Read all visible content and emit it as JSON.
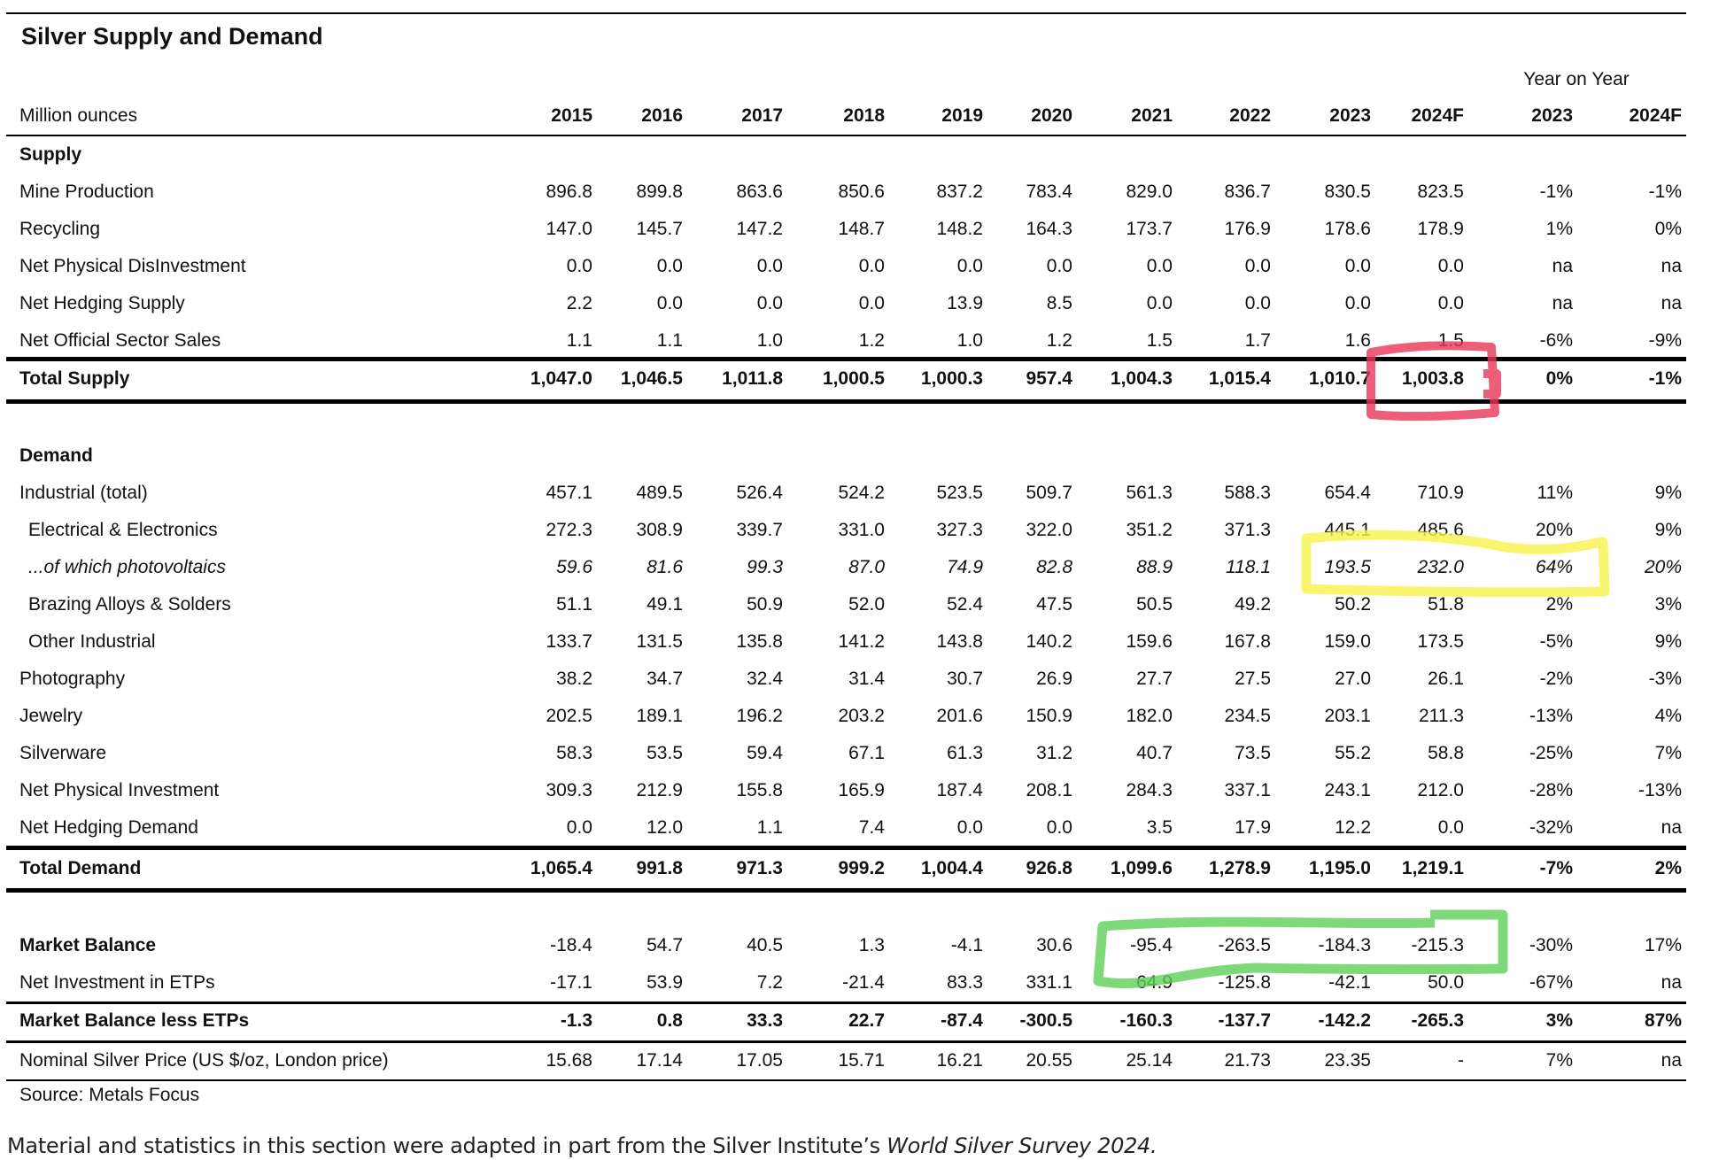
{
  "title": "Silver Supply and Demand",
  "yoy_label": "Year on Year",
  "header": {
    "label": "Million ounces",
    "years": [
      "2015",
      "2016",
      "2017",
      "2018",
      "2019",
      "2020",
      "2021",
      "2022",
      "2023",
      "2024F"
    ],
    "yoy": [
      "2023",
      "2024F"
    ]
  },
  "rows": [
    {
      "label": "Supply",
      "style": "section",
      "values": [],
      "yoy": []
    },
    {
      "label": "Mine Production",
      "values": [
        "896.8",
        "899.8",
        "863.6",
        "850.6",
        "837.2",
        "783.4",
        "829.0",
        "836.7",
        "830.5",
        "823.5"
      ],
      "yoy": [
        "-1%",
        "-1%"
      ]
    },
    {
      "label": "Recycling",
      "values": [
        "147.0",
        "145.7",
        "147.2",
        "148.7",
        "148.2",
        "164.3",
        "173.7",
        "176.9",
        "178.6",
        "178.9"
      ],
      "yoy": [
        "1%",
        "0%"
      ]
    },
    {
      "label": "Net Physical DisInvestment",
      "values": [
        "0.0",
        "0.0",
        "0.0",
        "0.0",
        "0.0",
        "0.0",
        "0.0",
        "0.0",
        "0.0",
        "0.0"
      ],
      "yoy": [
        "na",
        "na"
      ]
    },
    {
      "label": "Net Hedging Supply",
      "values": [
        "2.2",
        "0.0",
        "0.0",
        "0.0",
        "13.9",
        "8.5",
        "0.0",
        "0.0",
        "0.0",
        "0.0"
      ],
      "yoy": [
        "na",
        "na"
      ]
    },
    {
      "label": "Net Official Sector Sales",
      "values": [
        "1.1",
        "1.1",
        "1.0",
        "1.2",
        "1.0",
        "1.2",
        "1.5",
        "1.7",
        "1.6",
        "1.5"
      ],
      "yoy": [
        "-6%",
        "-9%"
      ]
    },
    {
      "label": "Total Supply",
      "style": "bold",
      "values": [
        "1,047.0",
        "1,046.5",
        "1,011.8",
        "1,000.5",
        "1,000.3",
        "957.4",
        "1,004.3",
        "1,015.4",
        "1,010.7",
        "1,003.8"
      ],
      "yoy": [
        "0%",
        "-1%"
      ]
    },
    {
      "label": "Demand",
      "style": "section",
      "values": [],
      "yoy": []
    },
    {
      "label": "Industrial (total)",
      "values": [
        "457.1",
        "489.5",
        "526.4",
        "524.2",
        "523.5",
        "509.7",
        "561.3",
        "588.3",
        "654.4",
        "710.9"
      ],
      "yoy": [
        "11%",
        "9%"
      ]
    },
    {
      "label": "Electrical & Electronics",
      "style": "indent",
      "values": [
        "272.3",
        "308.9",
        "339.7",
        "331.0",
        "327.3",
        "322.0",
        "351.2",
        "371.3",
        "445.1",
        "485.6"
      ],
      "yoy": [
        "20%",
        "9%"
      ]
    },
    {
      "label": "...of which photovoltaics",
      "style": "indent italic",
      "values": [
        "59.6",
        "81.6",
        "99.3",
        "87.0",
        "74.9",
        "82.8",
        "88.9",
        "118.1",
        "193.5",
        "232.0"
      ],
      "yoy": [
        "64%",
        "20%"
      ]
    },
    {
      "label": "Brazing Alloys & Solders",
      "style": "indent",
      "values": [
        "51.1",
        "49.1",
        "50.9",
        "52.0",
        "52.4",
        "47.5",
        "50.5",
        "49.2",
        "50.2",
        "51.8"
      ],
      "yoy": [
        "2%",
        "3%"
      ]
    },
    {
      "label": "Other Industrial",
      "style": "indent",
      "values": [
        "133.7",
        "131.5",
        "135.8",
        "141.2",
        "143.8",
        "140.2",
        "159.6",
        "167.8",
        "159.0",
        "173.5"
      ],
      "yoy": [
        "-5%",
        "9%"
      ]
    },
    {
      "label": "Photography",
      "values": [
        "38.2",
        "34.7",
        "32.4",
        "31.4",
        "30.7",
        "26.9",
        "27.7",
        "27.5",
        "27.0",
        "26.1"
      ],
      "yoy": [
        "-2%",
        "-3%"
      ]
    },
    {
      "label": "Jewelry",
      "values": [
        "202.5",
        "189.1",
        "196.2",
        "203.2",
        "201.6",
        "150.9",
        "182.0",
        "234.5",
        "203.1",
        "211.3"
      ],
      "yoy": [
        "-13%",
        "4%"
      ]
    },
    {
      "label": "Silverware",
      "values": [
        "58.3",
        "53.5",
        "59.4",
        "67.1",
        "61.3",
        "31.2",
        "40.7",
        "73.5",
        "55.2",
        "58.8"
      ],
      "yoy": [
        "-25%",
        "7%"
      ]
    },
    {
      "label": "Net Physical Investment",
      "values": [
        "309.3",
        "212.9",
        "155.8",
        "165.9",
        "187.4",
        "208.1",
        "284.3",
        "337.1",
        "243.1",
        "212.0"
      ],
      "yoy": [
        "-28%",
        "-13%"
      ]
    },
    {
      "label": "Net Hedging Demand",
      "values": [
        "0.0",
        "12.0",
        "1.1",
        "7.4",
        "0.0",
        "0.0",
        "3.5",
        "17.9",
        "12.2",
        "0.0"
      ],
      "yoy": [
        "-32%",
        "na"
      ]
    },
    {
      "label": "Total Demand",
      "style": "bold",
      "values": [
        "1,065.4",
        "991.8",
        "971.3",
        "999.2",
        "1,004.4",
        "926.8",
        "1,099.6",
        "1,278.9",
        "1,195.0",
        "1,219.1"
      ],
      "yoy": [
        "-7%",
        "2%"
      ]
    },
    {
      "label": "Market Balance",
      "style": "bold-label",
      "values": [
        "-18.4",
        "54.7",
        "40.5",
        "1.3",
        "-4.1",
        "30.6",
        "-95.4",
        "-263.5",
        "-184.3",
        "-215.3"
      ],
      "yoy": [
        "-30%",
        "17%"
      ]
    },
    {
      "label": "Net Investment in ETPs",
      "values": [
        "-17.1",
        "53.9",
        "7.2",
        "-21.4",
        "83.3",
        "331.1",
        "64.9",
        "-125.8",
        "-42.1",
        "50.0"
      ],
      "yoy": [
        "-67%",
        "na"
      ]
    },
    {
      "label": "Market Balance less ETPs",
      "style": "bold",
      "values": [
        "-1.3",
        "0.8",
        "33.3",
        "22.7",
        "-87.4",
        "-300.5",
        "-160.3",
        "-137.7",
        "-142.2",
        "-265.3"
      ],
      "yoy": [
        "3%",
        "87%"
      ]
    },
    {
      "label": "Nominal Silver Price (US $/oz, London price)",
      "values": [
        "15.68",
        "17.14",
        "17.05",
        "15.71",
        "16.21",
        "20.55",
        "25.14",
        "21.73",
        "23.35",
        "-"
      ],
      "yoy": [
        "7%",
        "na"
      ]
    }
  ],
  "source": "Source: Metals Focus",
  "footnote": {
    "text": "Material and statistics in this section were adapted in part from the Silver Institute’s ",
    "italic": "World Silver Survey 2024."
  },
  "annotation_colors": {
    "red": "#e8365a",
    "yellow": "#f7f24a",
    "green": "#5fcf5a"
  }
}
